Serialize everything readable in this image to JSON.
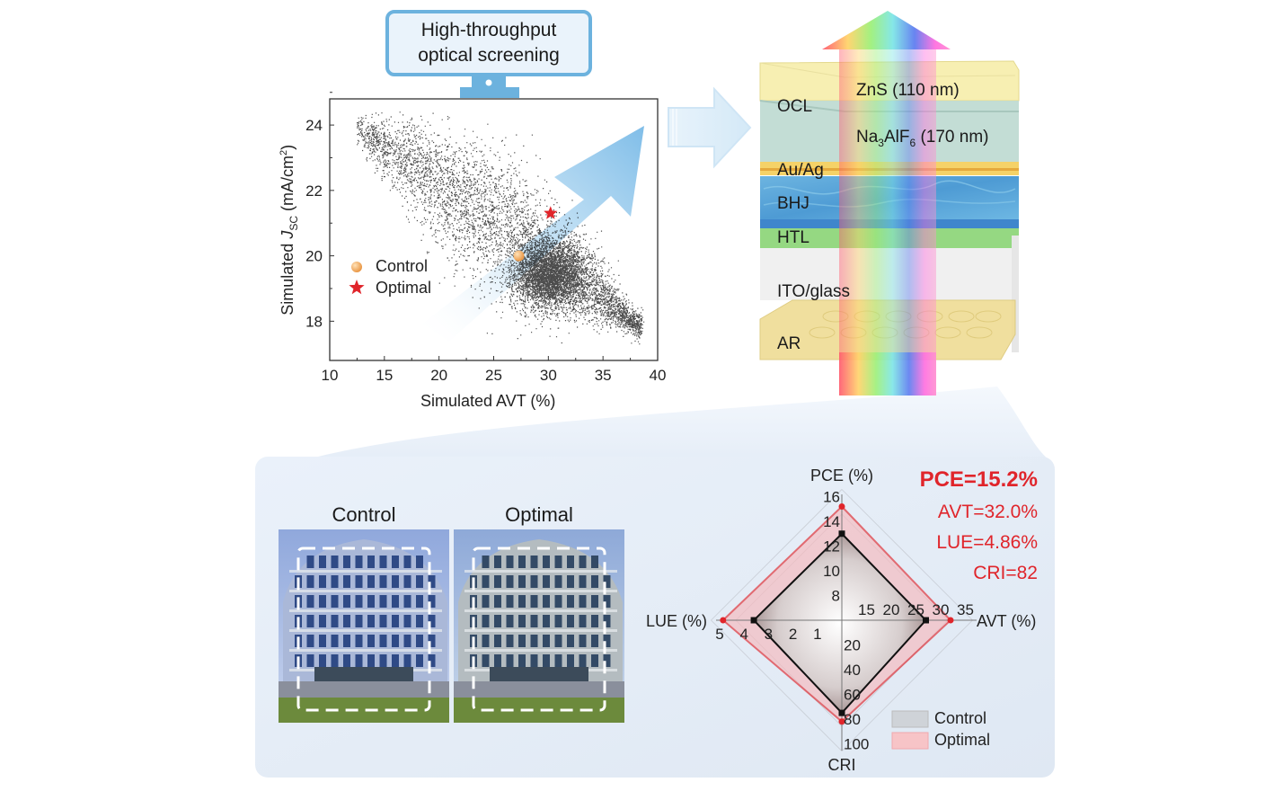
{
  "monitor": {
    "line1": "High-throughput",
    "line2": "optical screening",
    "icon": "monitor-icon"
  },
  "scatter_legend": {
    "control": "Control",
    "optimal": "Optimal"
  },
  "device": {
    "layers": [
      {
        "label": "OCL",
        "color": "#f6eeaa"
      },
      {
        "label": "ZnS (110 nm)",
        "color": "#f6eeaa"
      },
      {
        "label": "Na3AlF6 (170 nm)",
        "color": "#bcd9d0"
      },
      {
        "label": "Au/Ag",
        "color": "#f2c64a"
      },
      {
        "label": "BHJ",
        "color": "#5fa8d8"
      },
      {
        "label": "HTL",
        "color": "#93d87f"
      },
      {
        "label": "ITO/glass",
        "color": "#eeeeee"
      },
      {
        "label": "AR",
        "color": "#efdc94"
      }
    ],
    "na_prefix": "Na",
    "na_sub1": "3",
    "na_mid": "AlF",
    "na_sub2": "6",
    "na_suffix": " (170 nm)"
  },
  "photos": {
    "control_title": "Control",
    "optimal_title": "Optimal"
  },
  "metrics": {
    "pce": "PCE=15.2%",
    "avt": "AVT=32.0%",
    "lue": "LUE=4.86%",
    "cri": "CRI=82"
  },
  "colors": {
    "accent_red": "#e0252b",
    "arrow_blue": "#8cc4ea",
    "panel_bg": "#e6eef8",
    "control_orange": "#f0a860"
  },
  "chart_data": [
    {
      "type": "scatter",
      "title": "",
      "xlabel": "Simulated AVT (%)",
      "ylabel": "Simulated J_SC (mA/cm²)",
      "ylabel_parts": {
        "pre": "Simulated ",
        "italic": "J",
        "sub": "SC",
        "post": " (mA/cm",
        "sup": "2",
        "end": ")"
      },
      "xlim": [
        10,
        40
      ],
      "ylim": [
        16.8,
        24.8
      ],
      "xticks": [
        10,
        15,
        20,
        25,
        30,
        35,
        40
      ],
      "yticks": [
        18,
        20,
        22,
        24
      ],
      "cloud_description_band": {
        "x_range": [
          12,
          38.5
        ],
        "y_range": [
          17.4,
          24.3
        ]
      },
      "series": [
        {
          "name": "Control",
          "x": [
            27.3
          ],
          "y": [
            20.0
          ],
          "marker": "circle",
          "color": "#f0a860"
        },
        {
          "name": "Optimal",
          "x": [
            30.2
          ],
          "y": [
            21.3
          ],
          "marker": "star",
          "color": "#e0252b"
        }
      ],
      "legend": "middle-left"
    },
    {
      "type": "radar",
      "axes": [
        {
          "name": "PCE (%)",
          "min": 6,
          "max": 17,
          "ticks": [
            8,
            10,
            12,
            14,
            16
          ],
          "direction": "up"
        },
        {
          "name": "AVT (%)",
          "min": 10,
          "max": 37,
          "ticks": [
            15,
            20,
            25,
            30,
            35
          ],
          "direction": "right"
        },
        {
          "name": "CRI",
          "min": 0,
          "max": 105,
          "ticks": [
            20,
            40,
            60,
            80,
            100
          ],
          "direction": "down"
        },
        {
          "name": "LUE (%)",
          "min": 0,
          "max": 5.3,
          "ticks": [
            1,
            2,
            3,
            4,
            5
          ],
          "direction": "left"
        }
      ],
      "series": [
        {
          "name": "Control",
          "values": {
            "PCE (%)": 13.0,
            "AVT (%)": 27.0,
            "CRI": 75,
            "LUE (%)": 3.6
          },
          "color": "#111111"
        },
        {
          "name": "Optimal",
          "values": {
            "PCE (%)": 15.2,
            "AVT (%)": 32.0,
            "CRI": 82,
            "LUE (%)": 4.86
          },
          "color": "#e0252b"
        }
      ],
      "legend": "bottom-right"
    }
  ]
}
